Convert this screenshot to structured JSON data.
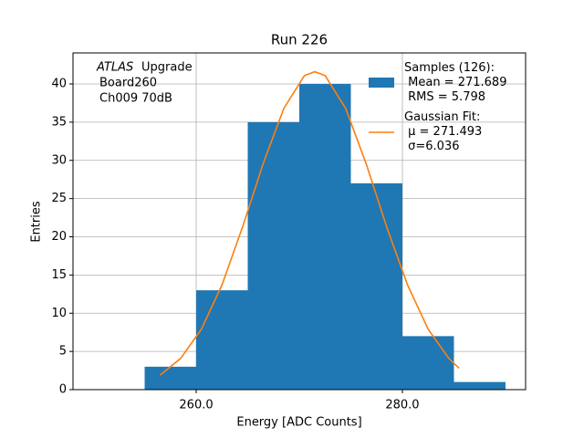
{
  "chart_data": {
    "type": "histogram",
    "title": "Run 226",
    "xlabel": "Energy [ADC Counts]",
    "ylabel": "Entries",
    "annotation": [
      "ATLAS",
      "Upgrade",
      "Board260",
      "Ch009 70dB"
    ],
    "xlim": [
      248.05,
      291.95
    ],
    "ylim": [
      0,
      44.06
    ],
    "xticks": [
      {
        "value": 260,
        "label": "260.0"
      },
      {
        "value": 280,
        "label": "280.0"
      }
    ],
    "yticks": [
      0,
      5,
      10,
      15,
      20,
      25,
      30,
      35,
      40
    ],
    "grid": true,
    "legend": "upper right",
    "series": [
      {
        "type": "histogram",
        "name": "Samples (126):\n Mean = 271.689\n RMS = 5.798",
        "color": "#1f77b4",
        "bins": [
          255,
          260,
          265,
          270,
          275,
          280,
          285,
          290
        ],
        "values": [
          3,
          13,
          35,
          40,
          27,
          7,
          1
        ]
      },
      {
        "type": "line",
        "name": "Gaussian Fit:\n μ = 271.493\n σ=6.036",
        "color": "#ff7f0e",
        "x": [
          256.5,
          258.5,
          260.5,
          262.5,
          264.5,
          266.5,
          268.5,
          270.5,
          271.5,
          272.5,
          274.5,
          276.5,
          278.5,
          280.5,
          282.5,
          284.5,
          285.5
        ],
        "values": [
          1.9,
          4.1,
          7.9,
          13.7,
          21.3,
          29.6,
          36.8,
          41.1,
          41.6,
          41.1,
          36.8,
          29.5,
          21.2,
          13.7,
          7.9,
          4.1,
          2.8
        ]
      }
    ]
  }
}
